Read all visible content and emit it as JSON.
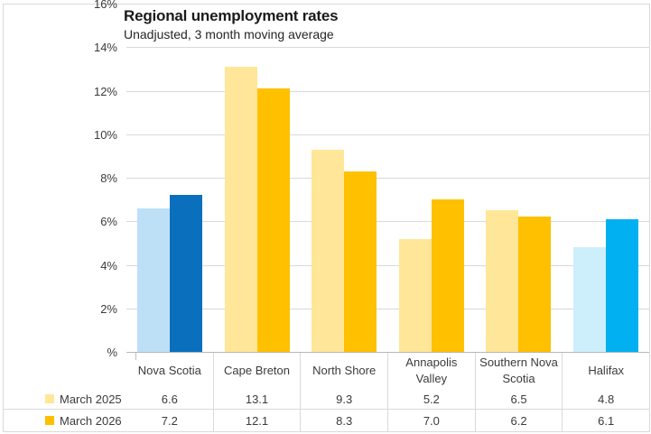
{
  "chart": {
    "title": "Regional unemployment rates",
    "subtitle": "Unadjusted, 3 month moving average"
  },
  "chart_data": {
    "type": "bar",
    "title": "Regional unemployment rates",
    "subtitle": "Unadjusted, 3 month moving average",
    "categories": [
      "Nova Scotia",
      "Cape Breton",
      "North Shore",
      "Annapolis Valley",
      "Southern Nova Scotia",
      "Halifax"
    ],
    "series": [
      {
        "name": "March 2025",
        "values": [
          6.6,
          13.1,
          9.3,
          5.2,
          6.5,
          4.8
        ],
        "bar_colors": [
          "#BDE0F7",
          "#FFE699",
          "#FFE699",
          "#FFE699",
          "#FFE699",
          "#CDEEFB"
        ],
        "legend_color": "#FFE699"
      },
      {
        "name": "March 2026",
        "values": [
          7.2,
          12.1,
          8.3,
          7.0,
          6.2,
          6.1
        ],
        "bar_colors": [
          "#0A70BE",
          "#FFC000",
          "#FFC000",
          "#FFC000",
          "#FFC000",
          "#00B0F0"
        ],
        "legend_color": "#FFC000"
      }
    ],
    "ylim": [
      0,
      16
    ],
    "ytick_labels": [
      "%",
      "2%",
      "4%",
      "6%",
      "8%",
      "10%",
      "12%",
      "14%",
      "16%"
    ],
    "grid": true,
    "legend_position": "bottom-table",
    "value_decimals": 1
  },
  "colors": {
    "gridline": "#D9D9D9",
    "axis_line": "#B7B7B7",
    "frame_border": "#D9D9D9",
    "text": "#3B3B3B",
    "title_text": "#1A1A1A"
  }
}
